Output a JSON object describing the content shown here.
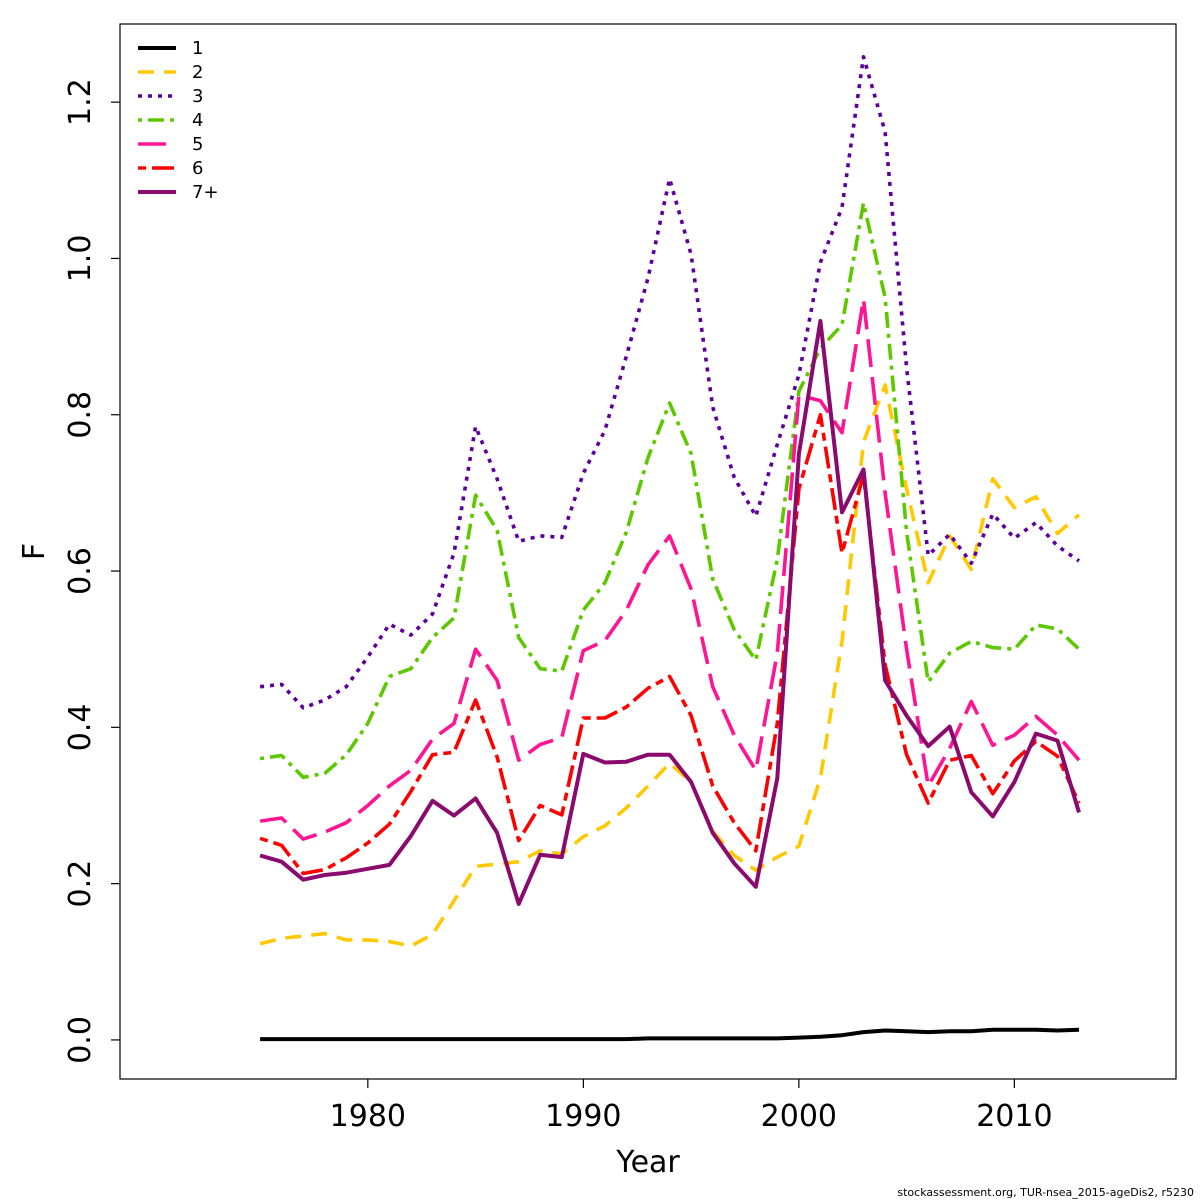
{
  "chart_data": {
    "type": "line",
    "title": "",
    "xlabel": "Year",
    "ylabel": "F",
    "xlim": [
      1968.5,
      2017.5
    ],
    "ylim": [
      -0.05,
      1.3
    ],
    "xticks": [
      1980,
      1990,
      2000,
      2010
    ],
    "yticks": [
      0.0,
      0.2,
      0.4,
      0.6,
      0.8,
      1.0,
      1.2
    ],
    "ytick_labels": [
      "0.0",
      "0.2",
      "0.4",
      "0.6",
      "0.8",
      "1.0",
      "1.2"
    ],
    "legend_position": "top-left",
    "x": [
      1975,
      1976,
      1977,
      1978,
      1979,
      1980,
      1981,
      1982,
      1983,
      1984,
      1985,
      1986,
      1987,
      1988,
      1989,
      1990,
      1991,
      1992,
      1993,
      1994,
      1995,
      1996,
      1997,
      1998,
      1999,
      2000,
      2001,
      2002,
      2003,
      2004,
      2005,
      2006,
      2007,
      2008,
      2009,
      2010,
      2011,
      2012,
      2013
    ],
    "series": [
      {
        "name": "1",
        "color": "#000000",
        "dash": "solid",
        "values": [
          0.001,
          0.001,
          0.001,
          0.001,
          0.001,
          0.001,
          0.001,
          0.001,
          0.001,
          0.001,
          0.001,
          0.001,
          0.001,
          0.001,
          0.001,
          0.001,
          0.001,
          0.001,
          0.002,
          0.002,
          0.002,
          0.002,
          0.002,
          0.002,
          0.002,
          0.003,
          0.004,
          0.006,
          0.01,
          0.012,
          0.011,
          0.01,
          0.011,
          0.011,
          0.013,
          0.013,
          0.013,
          0.012,
          0.013
        ]
      },
      {
        "name": "2",
        "color": "#FFC800",
        "dash": "dashed",
        "values": [
          0.123,
          0.13,
          0.133,
          0.136,
          0.128,
          0.128,
          0.126,
          0.12,
          0.135,
          0.178,
          0.222,
          0.225,
          0.228,
          0.242,
          0.238,
          0.26,
          0.274,
          0.297,
          0.325,
          0.354,
          0.33,
          0.267,
          0.236,
          0.217,
          0.234,
          0.248,
          0.335,
          0.51,
          0.765,
          0.838,
          0.705,
          0.585,
          0.645,
          0.602,
          0.718,
          0.681,
          0.695,
          0.648,
          0.672
        ]
      },
      {
        "name": "3",
        "color": "#5C009C",
        "dash": "dotted",
        "values": [
          0.452,
          0.455,
          0.425,
          0.435,
          0.452,
          0.49,
          0.532,
          0.518,
          0.545,
          0.623,
          0.785,
          0.718,
          0.638,
          0.645,
          0.643,
          0.725,
          0.78,
          0.875,
          0.975,
          1.102,
          1.005,
          0.81,
          0.72,
          0.67,
          0.762,
          0.851,
          0.995,
          1.065,
          1.258,
          1.162,
          0.86,
          0.62,
          0.647,
          0.61,
          0.673,
          0.642,
          0.662,
          0.632,
          0.613
        ]
      },
      {
        "name": "4",
        "color": "#5DC800",
        "dash": "dotdash",
        "values": [
          0.36,
          0.364,
          0.336,
          0.341,
          0.365,
          0.405,
          0.465,
          0.475,
          0.515,
          0.54,
          0.697,
          0.652,
          0.515,
          0.475,
          0.472,
          0.55,
          0.585,
          0.65,
          0.745,
          0.815,
          0.75,
          0.59,
          0.525,
          0.486,
          0.615,
          0.83,
          0.885,
          0.915,
          1.071,
          0.95,
          0.65,
          0.458,
          0.495,
          0.51,
          0.502,
          0.5,
          0.531,
          0.526,
          0.5
        ]
      },
      {
        "name": "5",
        "color": "#FF1493",
        "dash": "longdash",
        "values": [
          0.28,
          0.284,
          0.257,
          0.266,
          0.278,
          0.3,
          0.325,
          0.345,
          0.385,
          0.405,
          0.5,
          0.46,
          0.358,
          0.378,
          0.387,
          0.498,
          0.511,
          0.55,
          0.608,
          0.645,
          0.577,
          0.452,
          0.39,
          0.345,
          0.495,
          0.825,
          0.818,
          0.777,
          0.948,
          0.7,
          0.5,
          0.325,
          0.373,
          0.433,
          0.377,
          0.39,
          0.414,
          0.39,
          0.358
        ]
      },
      {
        "name": "6",
        "color": "#FF0000",
        "dash": "twodash",
        "values": [
          0.258,
          0.249,
          0.213,
          0.218,
          0.233,
          0.252,
          0.276,
          0.318,
          0.365,
          0.368,
          0.435,
          0.362,
          0.255,
          0.3,
          0.288,
          0.412,
          0.412,
          0.426,
          0.45,
          0.465,
          0.415,
          0.325,
          0.278,
          0.242,
          0.405,
          0.705,
          0.8,
          0.623,
          0.723,
          0.48,
          0.365,
          0.303,
          0.358,
          0.364,
          0.315,
          0.357,
          0.382,
          0.363,
          0.303
        ]
      },
      {
        "name": "7+",
        "color": "#8B0A6E",
        "dash": "solid",
        "values": [
          0.236,
          0.228,
          0.205,
          0.211,
          0.214,
          0.219,
          0.224,
          0.261,
          0.306,
          0.287,
          0.309,
          0.265,
          0.174,
          0.237,
          0.234,
          0.366,
          0.355,
          0.356,
          0.365,
          0.365,
          0.33,
          0.265,
          0.226,
          0.196,
          0.335,
          0.75,
          0.92,
          0.675,
          0.73,
          0.46,
          0.415,
          0.376,
          0.401,
          0.317,
          0.286,
          0.33,
          0.392,
          0.383,
          0.291
        ]
      }
    ]
  },
  "footer_text": "stockassessment.org, TUR-nsea_2015-ageDis2, r5230"
}
